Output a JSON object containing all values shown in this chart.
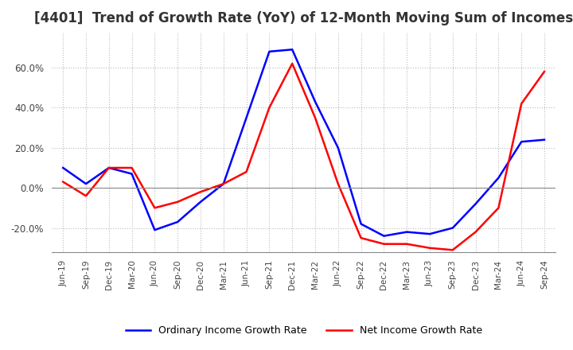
{
  "title": "[4401]  Trend of Growth Rate (YoY) of 12-Month Moving Sum of Incomes",
  "title_fontsize": 12,
  "ylim": [
    -0.32,
    0.78
  ],
  "yticks": [
    -0.2,
    0.0,
    0.2,
    0.4,
    0.6
  ],
  "background_color": "#ffffff",
  "grid_color": "#bbbbbb",
  "ordinary_color": "#0000ff",
  "net_color": "#ff0000",
  "legend_labels": [
    "Ordinary Income Growth Rate",
    "Net Income Growth Rate"
  ],
  "x_labels": [
    "Jun-19",
    "Sep-19",
    "Dec-19",
    "Mar-20",
    "Jun-20",
    "Sep-20",
    "Dec-20",
    "Mar-21",
    "Jun-21",
    "Sep-21",
    "Dec-21",
    "Mar-22",
    "Jun-22",
    "Sep-22",
    "Dec-22",
    "Mar-23",
    "Jun-23",
    "Sep-23",
    "Dec-23",
    "Mar-24",
    "Jun-24",
    "Sep-24"
  ],
  "ordinary_values": [
    0.1,
    0.02,
    0.1,
    0.07,
    -0.21,
    -0.17,
    -0.07,
    0.02,
    0.35,
    0.68,
    0.69,
    0.43,
    0.2,
    -0.18,
    -0.24,
    -0.22,
    -0.23,
    -0.2,
    -0.08,
    0.05,
    0.23,
    0.24
  ],
  "net_values": [
    0.03,
    -0.04,
    0.1,
    0.1,
    -0.1,
    -0.07,
    -0.02,
    0.02,
    0.08,
    0.4,
    0.62,
    0.35,
    0.02,
    -0.25,
    -0.28,
    -0.28,
    -0.3,
    -0.31,
    -0.22,
    -0.1,
    0.42,
    0.58
  ]
}
